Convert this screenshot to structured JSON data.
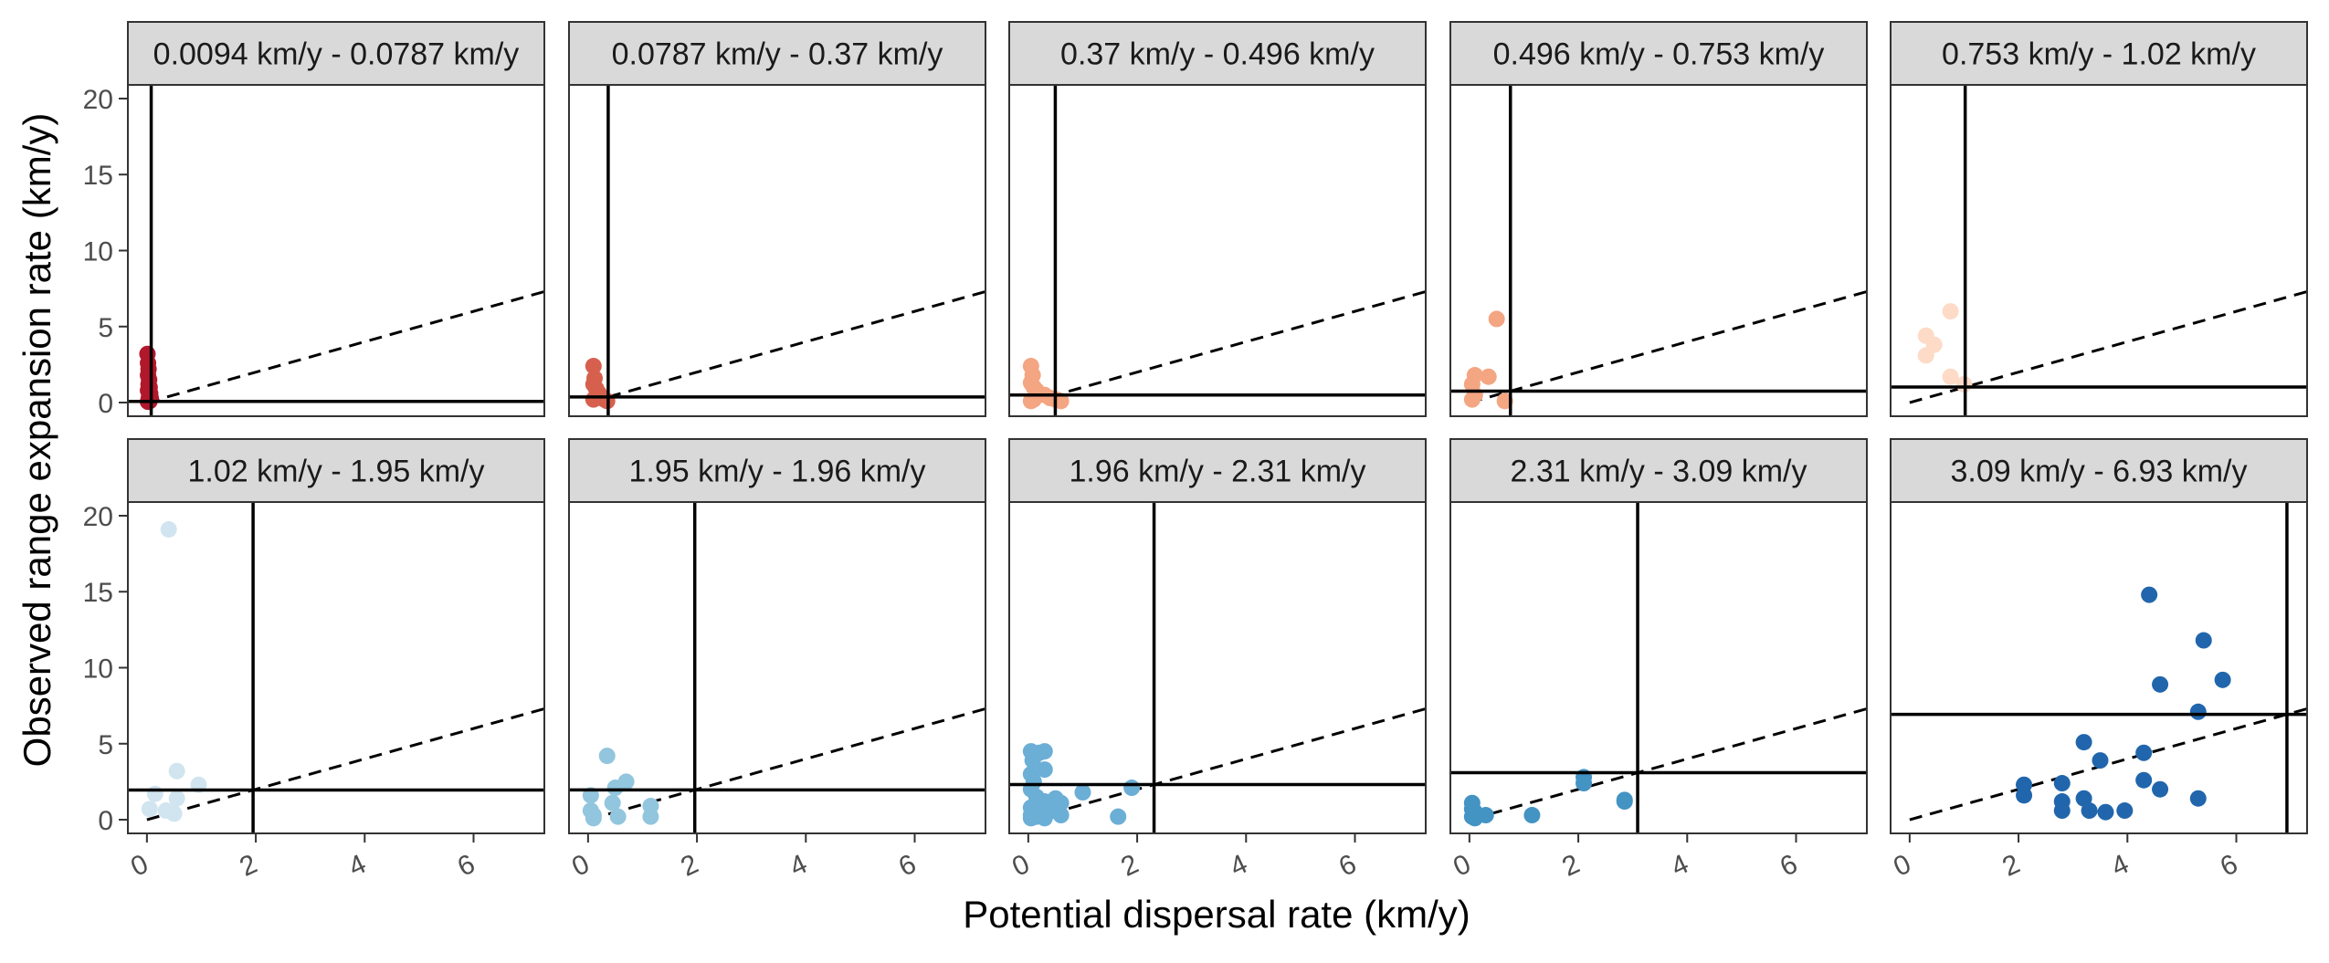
{
  "chart_data": {
    "type": "scatter",
    "xlabel": "Potential dispersal rate (km/y)",
    "ylabel": "Observed range expansion rate (km/y)",
    "xlim": [
      -0.35,
      7.3
    ],
    "ylim": [
      -0.9,
      20.9
    ],
    "x_ticks": [
      0,
      2,
      4,
      6
    ],
    "y_ticks": [
      0,
      5,
      10,
      15,
      20
    ],
    "reference_line": {
      "style": "dashed",
      "slope": 1,
      "intercept": 0
    },
    "facets": [
      {
        "label": "0.0094 km/y - 0.0787 km/y",
        "vline": 0.0787,
        "hline": 0.0787,
        "color": "#b2182b",
        "points": [
          [
            0.01,
            3.2
          ],
          [
            0.02,
            2.6
          ],
          [
            0.03,
            2.2
          ],
          [
            0.02,
            1.8
          ],
          [
            0.04,
            1.5
          ],
          [
            0.03,
            1.2
          ],
          [
            0.05,
            1.0
          ],
          [
            0.02,
            0.8
          ],
          [
            0.06,
            0.6
          ],
          [
            0.04,
            0.4
          ],
          [
            0.07,
            0.3
          ],
          [
            0.03,
            0.2
          ],
          [
            0.05,
            0.1
          ],
          [
            0.02,
            0.05
          ]
        ]
      },
      {
        "label": "0.0787 km/y - 0.37 km/y",
        "vline": 0.37,
        "hline": 0.37,
        "color": "#d6604d",
        "points": [
          [
            0.1,
            2.4
          ],
          [
            0.12,
            1.6
          ],
          [
            0.1,
            1.2
          ],
          [
            0.15,
            0.9
          ],
          [
            0.2,
            0.6
          ],
          [
            0.25,
            0.3
          ],
          [
            0.3,
            0.2
          ],
          [
            0.35,
            0.1
          ],
          [
            0.18,
            0.4
          ],
          [
            0.1,
            0.2
          ]
        ]
      },
      {
        "label": "0.37 km/y - 0.496 km/y",
        "vline": 0.496,
        "hline": 0.496,
        "color": "#f4a582",
        "points": [
          [
            0.05,
            2.4
          ],
          [
            0.08,
            1.8
          ],
          [
            0.05,
            1.3
          ],
          [
            0.1,
            1.0
          ],
          [
            0.15,
            0.8
          ],
          [
            0.2,
            0.6
          ],
          [
            0.3,
            0.5
          ],
          [
            0.4,
            0.3
          ],
          [
            0.5,
            0.2
          ],
          [
            0.6,
            0.1
          ],
          [
            0.1,
            0.2
          ],
          [
            0.05,
            0.1
          ]
        ]
      },
      {
        "label": "0.496 km/y - 0.753 km/y",
        "vline": 0.753,
        "hline": 0.753,
        "color": "#f4a582",
        "points": [
          [
            0.5,
            5.5
          ],
          [
            0.1,
            1.8
          ],
          [
            0.35,
            1.7
          ],
          [
            0.05,
            1.2
          ],
          [
            0.1,
            0.5
          ],
          [
            0.05,
            0.2
          ],
          [
            0.65,
            0.1
          ]
        ]
      },
      {
        "label": "0.753 km/y - 1.02 km/y",
        "vline": 1.02,
        "hline": 1.02,
        "color": "#fddbc7",
        "points": [
          [
            0.75,
            6.0
          ],
          [
            0.3,
            4.4
          ],
          [
            0.45,
            3.8
          ],
          [
            0.3,
            3.1
          ],
          [
            0.75,
            1.7
          ],
          [
            1.0,
            1.2
          ]
        ]
      },
      {
        "label": "1.02 km/y - 1.95 km/y",
        "vline": 1.95,
        "hline": 1.95,
        "color": "#d1e5f0",
        "points": [
          [
            0.4,
            19.1
          ],
          [
            0.55,
            3.2
          ],
          [
            0.95,
            2.3
          ],
          [
            0.15,
            1.7
          ],
          [
            0.55,
            1.4
          ],
          [
            0.05,
            0.7
          ],
          [
            0.35,
            0.6
          ],
          [
            0.5,
            0.4
          ]
        ]
      },
      {
        "label": "1.95 km/y - 1.96 km/y",
        "vline": 1.96,
        "hline": 1.96,
        "color": "#92c5de",
        "points": [
          [
            0.35,
            4.2
          ],
          [
            0.7,
            2.5
          ],
          [
            0.5,
            2.1
          ],
          [
            0.05,
            1.6
          ],
          [
            0.45,
            1.1
          ],
          [
            1.15,
            0.9
          ],
          [
            0.05,
            0.6
          ],
          [
            0.1,
            0.3
          ],
          [
            0.55,
            0.2
          ],
          [
            1.15,
            0.2
          ],
          [
            0.1,
            0.1
          ]
        ]
      },
      {
        "label": "1.96 km/y - 2.31 km/y",
        "vline": 2.31,
        "hline": 2.31,
        "color": "#6baed6",
        "points": [
          [
            0.05,
            4.5
          ],
          [
            0.2,
            4.4
          ],
          [
            0.3,
            4.5
          ],
          [
            0.08,
            3.9
          ],
          [
            0.3,
            3.3
          ],
          [
            0.05,
            3.0
          ],
          [
            0.1,
            2.5
          ],
          [
            1.9,
            2.1
          ],
          [
            0.05,
            2.0
          ],
          [
            1.0,
            1.8
          ],
          [
            0.15,
            1.5
          ],
          [
            0.5,
            1.4
          ],
          [
            0.3,
            1.2
          ],
          [
            0.6,
            1.1
          ],
          [
            0.2,
            0.9
          ],
          [
            0.05,
            0.8
          ],
          [
            0.45,
            0.6
          ],
          [
            0.1,
            0.5
          ],
          [
            0.25,
            0.4
          ],
          [
            0.05,
            0.3
          ],
          [
            0.15,
            0.2
          ],
          [
            0.6,
            0.3
          ],
          [
            1.65,
            0.2
          ],
          [
            0.05,
            0.1
          ],
          [
            0.3,
            0.1
          ]
        ]
      },
      {
        "label": "2.31 km/y - 3.09 km/y",
        "vline": 3.09,
        "hline": 3.09,
        "color": "#4393c3",
        "points": [
          [
            2.1,
            2.8
          ],
          [
            2.1,
            2.4
          ],
          [
            2.85,
            1.3
          ],
          [
            2.85,
            1.2
          ],
          [
            0.05,
            1.1
          ],
          [
            0.05,
            0.7
          ],
          [
            0.1,
            0.5
          ],
          [
            0.3,
            0.3
          ],
          [
            1.15,
            0.3
          ],
          [
            0.05,
            0.2
          ],
          [
            0.1,
            0.1
          ]
        ]
      },
      {
        "label": "3.09 km/y - 6.93 km/y",
        "vline": 6.93,
        "hline": 6.93,
        "color": "#2166ac",
        "points": [
          [
            4.4,
            14.8
          ],
          [
            5.4,
            11.8
          ],
          [
            5.75,
            9.2
          ],
          [
            4.6,
            8.9
          ],
          [
            5.3,
            7.1
          ],
          [
            3.2,
            5.1
          ],
          [
            3.5,
            3.9
          ],
          [
            4.3,
            4.4
          ],
          [
            2.1,
            2.3
          ],
          [
            2.8,
            2.4
          ],
          [
            4.3,
            2.6
          ],
          [
            2.1,
            1.6
          ],
          [
            2.8,
            1.2
          ],
          [
            3.2,
            1.4
          ],
          [
            4.6,
            2.0
          ],
          [
            2.8,
            0.6
          ],
          [
            3.3,
            0.6
          ],
          [
            3.6,
            0.5
          ],
          [
            3.95,
            0.6
          ],
          [
            5.3,
            1.4
          ]
        ]
      }
    ]
  }
}
